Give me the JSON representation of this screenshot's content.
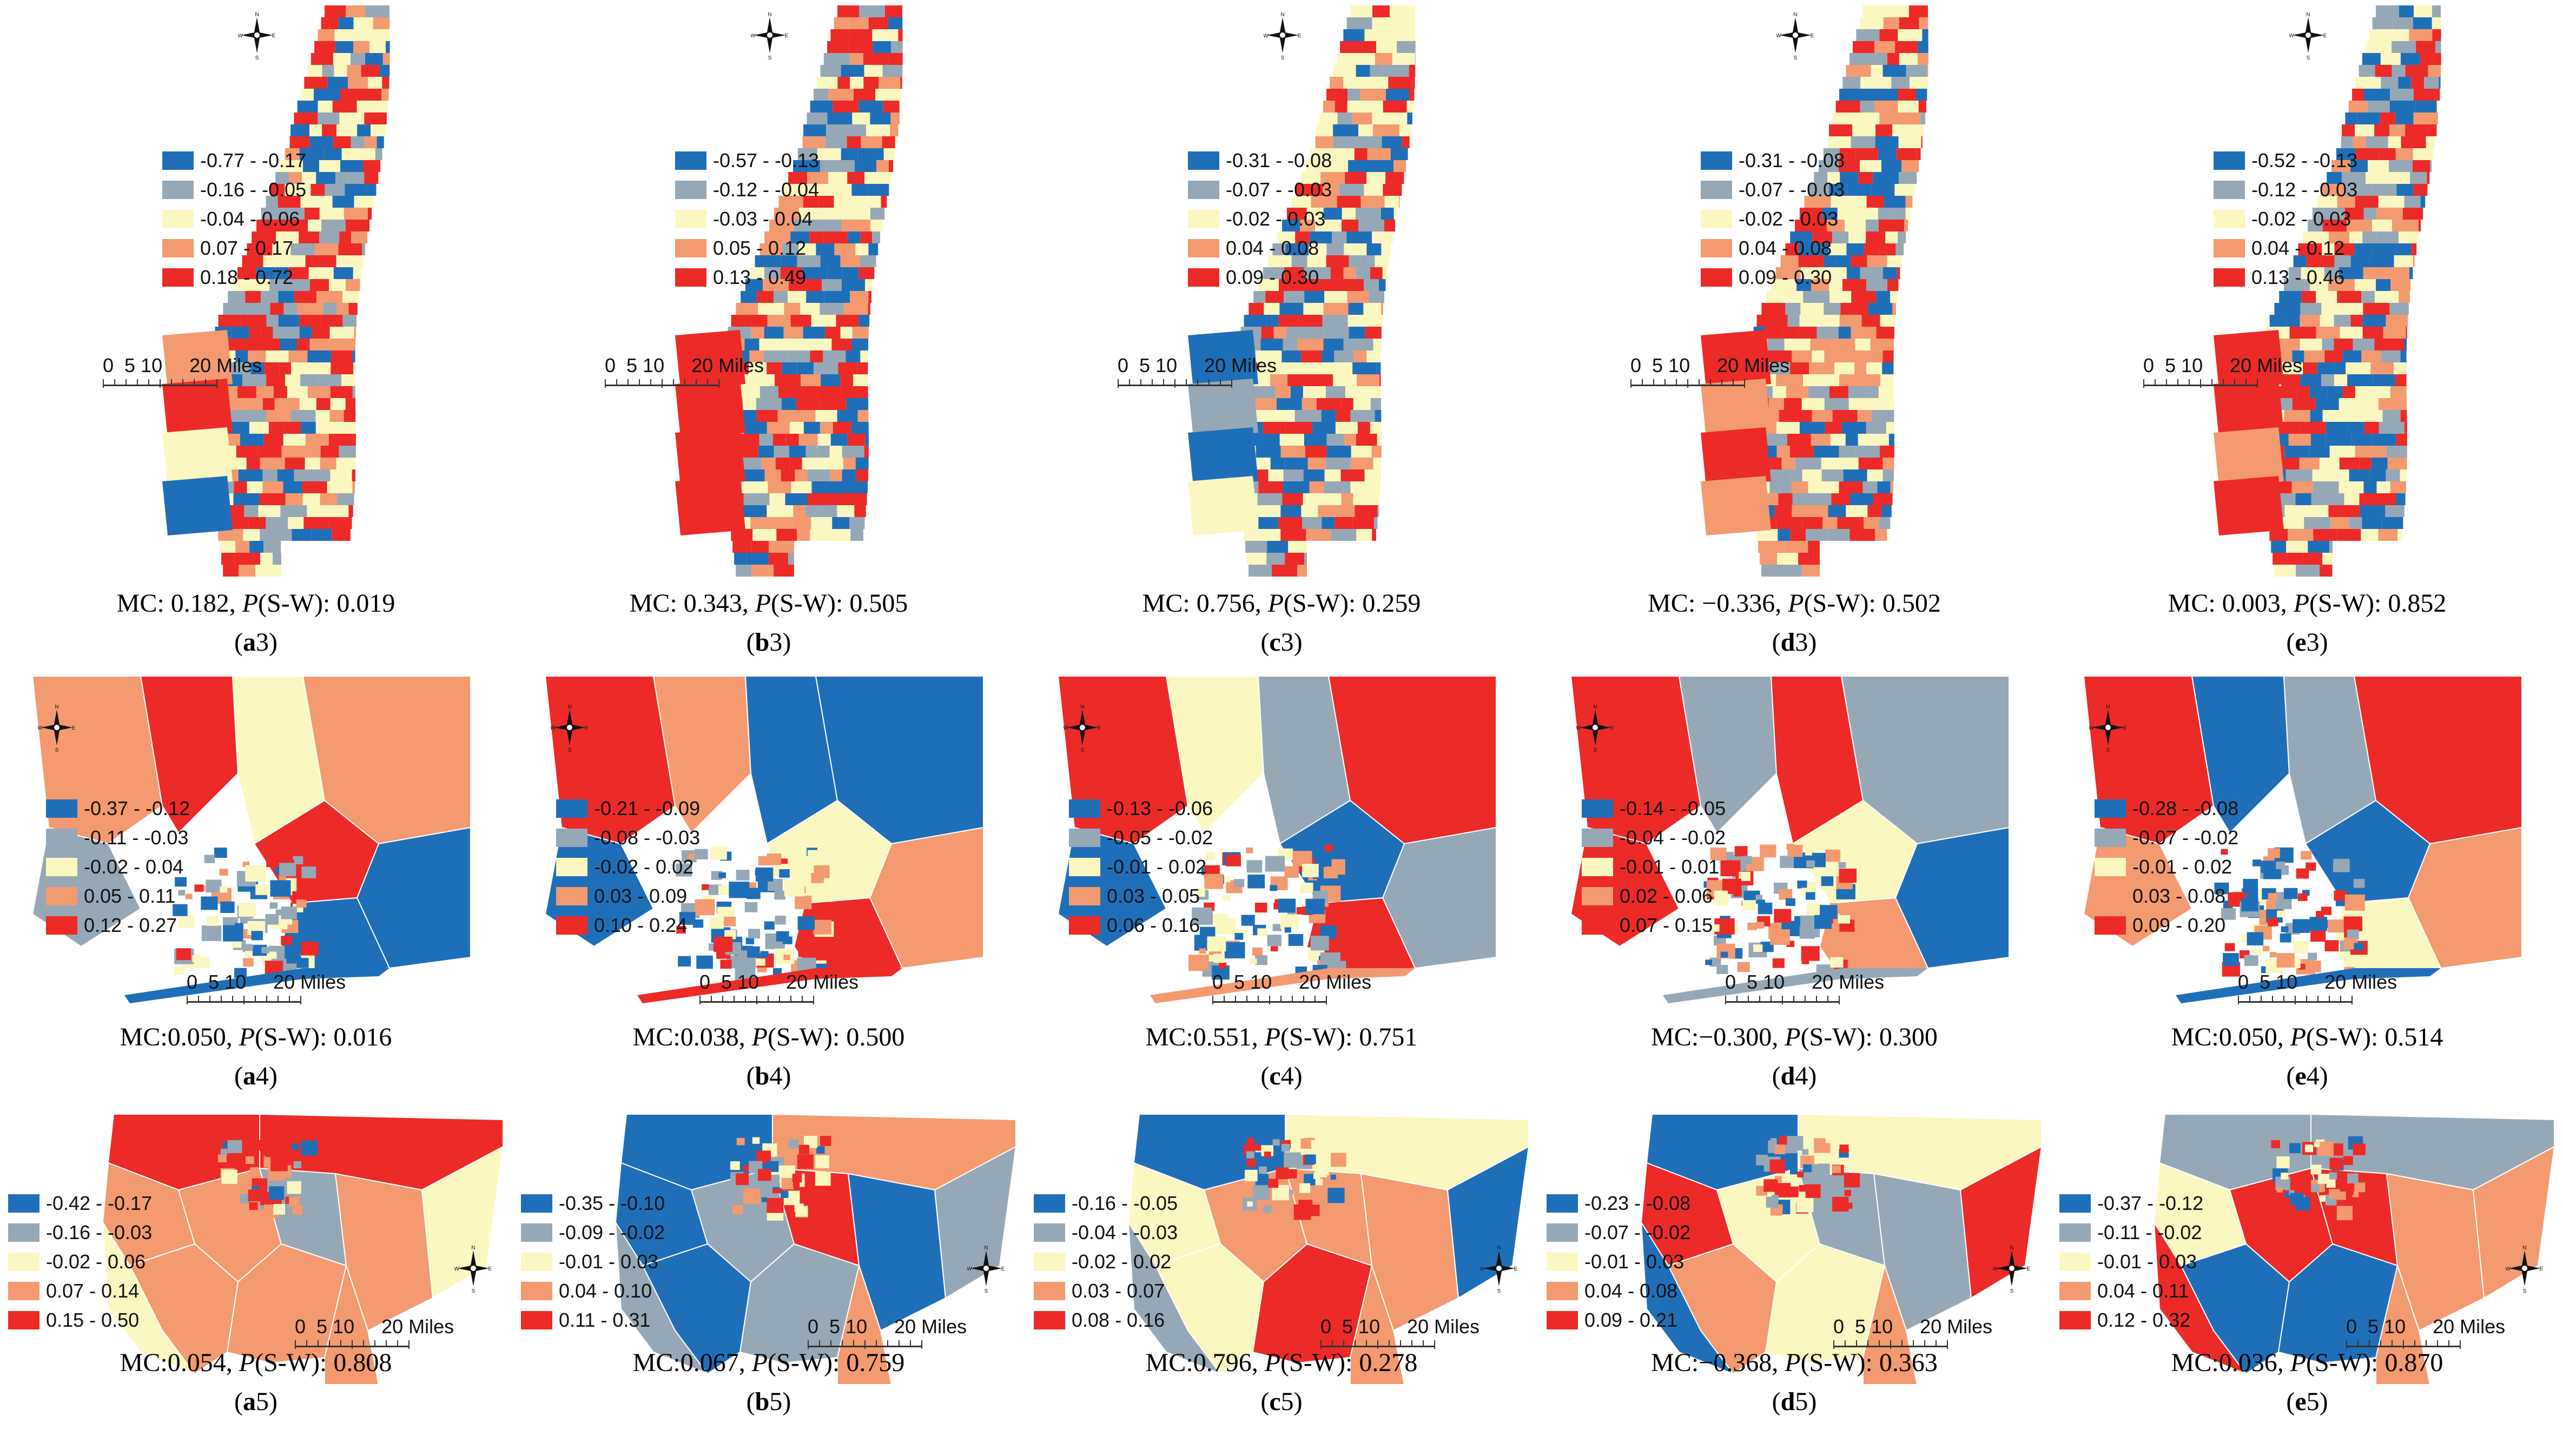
{
  "figure": {
    "panels": [
      {
        "id": "a3",
        "letter": "a",
        "number": "3",
        "mc": "MC: 0.182, ",
        "p_label": "P",
        "sw": "(S-W): 0.019",
        "legend": [
          "-0.77 - -0.17",
          "-0.16 - -0.05",
          "-0.04 - 0.06",
          "0.07 - 0.17",
          "0.18 - 0.72"
        ]
      },
      {
        "id": "b3",
        "letter": "b",
        "number": "3",
        "mc": "MC: 0.343, ",
        "p_label": "P",
        "sw": "(S-W): 0.505",
        "legend": [
          "-0.57 - -0.13",
          "-0.12 - -0.04",
          "-0.03 - 0.04",
          "0.05 - 0.12",
          "0.13 - 0.49"
        ]
      },
      {
        "id": "c3",
        "letter": "c",
        "number": "3",
        "mc": "MC: 0.756, ",
        "p_label": "P",
        "sw": "(S-W): 0.259",
        "legend": [
          "-0.31 - -0.08",
          "-0.07 - -0.03",
          "-0.02 - 0.03",
          "0.04 - 0.08",
          "0.09 - 0.30"
        ]
      },
      {
        "id": "d3",
        "letter": "d",
        "number": "3",
        "mc": "MC: −0.336, ",
        "p_label": "P",
        "sw": "(S-W): 0.502",
        "legend": [
          "-0.31 - -0.08",
          "-0.07 - -0.03",
          "-0.02 - 0.03",
          "0.04 - 0.08",
          "0.09 - 0.30"
        ]
      },
      {
        "id": "e3",
        "letter": "e",
        "number": "3",
        "mc": "MC: 0.003, ",
        "p_label": "P",
        "sw": "(S-W): 0.852",
        "legend": [
          "-0.52 - -0.13",
          "-0.12 - -0.03",
          "-0.02 - 0.03",
          "0.04 - 0.12",
          "0.13 - 0.46"
        ]
      },
      {
        "id": "a4",
        "letter": "a",
        "number": "4",
        "mc": "MC:0.050, ",
        "p_label": "P",
        "sw": "(S-W): 0.016",
        "legend": [
          "-0.37 - -0.12",
          "-0.11 - -0.03",
          "-0.02 - 0.04",
          "0.05 - 0.11",
          "0.12 - 0.27"
        ]
      },
      {
        "id": "b4",
        "letter": "b",
        "number": "4",
        "mc": "MC:0.038, ",
        "p_label": "P",
        "sw": "(S-W): 0.500",
        "legend": [
          "-0.21 - -0.09",
          "-0.08 - -0.03",
          "-0.02 - 0.02",
          "0.03 - 0.09",
          "0.10 - 0.24"
        ]
      },
      {
        "id": "c4",
        "letter": "c",
        "number": "4",
        "mc": "MC:0.551, ",
        "p_label": "P",
        "sw": "(S-W): 0.751",
        "legend": [
          "-0.13 - -0.06",
          "-0.05 - -0.02",
          "-0.01 - 0.02",
          "0.03 - 0.05",
          "0.06 - 0.16"
        ]
      },
      {
        "id": "d4",
        "letter": "d",
        "number": "4",
        "mc": "MC:−0.300, ",
        "p_label": "P",
        "sw": "(S-W): 0.300",
        "legend": [
          "-0.14 - -0.05",
          "-0.04 - -0.02",
          "-0.01 - 0.01",
          "0.02 - 0.06",
          "0.07 - 0.15"
        ]
      },
      {
        "id": "e4",
        "letter": "e",
        "number": "4",
        "mc": "MC:0.050, ",
        "p_label": "P",
        "sw": "(S-W): 0.514",
        "legend": [
          "-0.28 - -0.08",
          "-0.07 - -0.02",
          "-0.01 - 0.02",
          "0.03 - 0.08",
          "0.09 - 0.20"
        ]
      },
      {
        "id": "a5",
        "letter": "a",
        "number": "5",
        "mc": "MC:0.054, ",
        "p_label": "P",
        "sw": "(S-W): 0.808",
        "legend": [
          "-0.42 - -0.17",
          "-0.16 - -0.03",
          "-0.02 - 0.06",
          "0.07 - 0.14",
          "0.15 - 0.50"
        ]
      },
      {
        "id": "b5",
        "letter": "b",
        "number": "5",
        "mc": "MC:0.067, ",
        "p_label": "P",
        "sw": "(S-W): 0.759",
        "legend": [
          "-0.35 - -0.10",
          "-0.09 - -0.02",
          "-0.01 - 0.03",
          "0.04 - 0.10",
          "0.11 - 0.31"
        ]
      },
      {
        "id": "c5",
        "letter": "c",
        "number": "5",
        "mc": "MC:0.796, ",
        "p_label": "P",
        "sw": "(S-W): 0.278",
        "legend": [
          "-0.16 - -0.05",
          "-0.04 - -0.03",
          "-0.02 - 0.02",
          "0.03 - 0.07",
          "0.08 - 0.16"
        ]
      },
      {
        "id": "d5",
        "letter": "d",
        "number": "5",
        "mc": "MC:−0.368, ",
        "p_label": "P",
        "sw": "(S-W): 0.363",
        "legend": [
          "-0.23 - -0.08",
          "-0.07 - -0.02",
          "-0.01 - 0.03",
          "0.04 - 0.08",
          "0.09 - 0.21"
        ]
      },
      {
        "id": "e5",
        "letter": "e",
        "number": "5",
        "mc": "MC:0.036, ",
        "p_label": "P",
        "sw": "(S-W): 0.870",
        "legend": [
          "-0.37 - -0.12",
          "-0.11 - -0.02",
          "-0.01 - 0.03",
          "0.04 - 0.11",
          "0.12 - 0.32"
        ]
      }
    ],
    "scale": {
      "label": "0  5 10     20 Miles"
    },
    "compass": {
      "n": "N",
      "s": "S",
      "e": "E",
      "w": "W"
    },
    "paren_open": "(",
    "paren_close": ")",
    "colors": {
      "class1": "#1f6fb8",
      "class2": "#96a8b6",
      "class3": "#fbf7c0",
      "class4": "#f39a70",
      "class5": "#ec2a28"
    }
  }
}
